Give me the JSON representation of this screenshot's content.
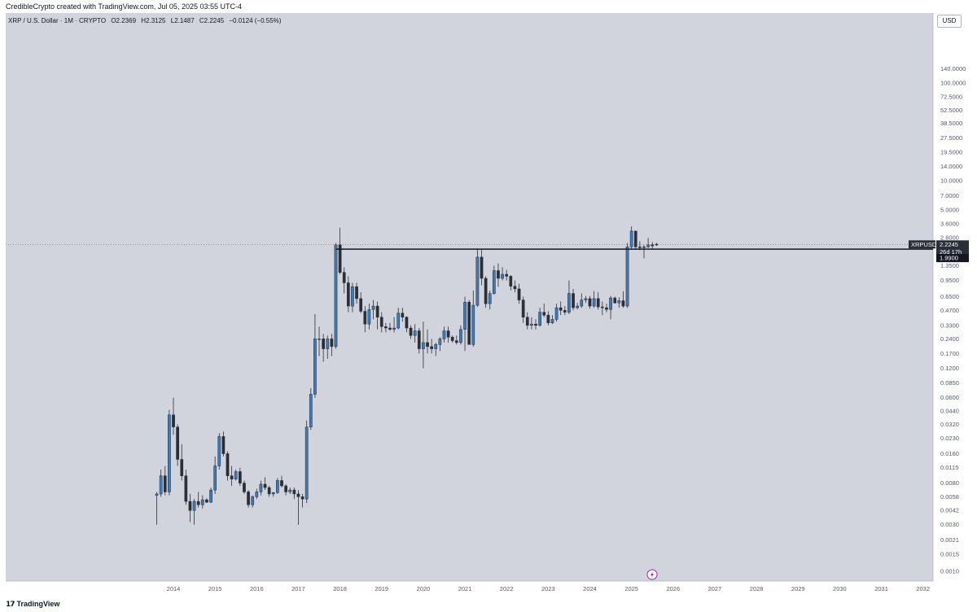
{
  "header": {
    "credit": "CredibleCrypto created with TradingView.com, Jul 05, 2025 03:55 UTC-4"
  },
  "legend": {
    "symbol": "XRP / U.S. Dollar",
    "interval": "1M",
    "exchange": "CRYPTO",
    "open_label": "O",
    "open": "2.2369",
    "high_label": "H",
    "high": "2.3125",
    "low_label": "L",
    "low": "2.1487",
    "close_label": "C",
    "close": "2.2245",
    "change": "−0.0124 (−0.55%)"
  },
  "currency_button": "USD",
  "branding": {
    "name": "TradingView",
    "mark": "𝟭𝟳"
  },
  "price_tag": {
    "symbol": "XRPUSD",
    "price": "2.2245",
    "countdown": "26d 17h"
  },
  "level_tag": {
    "price": "1.9900"
  },
  "colors": {
    "background": "#d1d4dc",
    "bull": "#3d7ab8",
    "bear": "#2a2e39",
    "level_line": "#131722",
    "tag_dark": "#131722"
  },
  "chart_data": {
    "type": "candlestick",
    "y_scale": "log",
    "ylim": [
      0.0008,
      160
    ],
    "y_ticks": [
      "140.0000",
      "100.0000",
      "72.5000",
      "52.5000",
      "38.5000",
      "27.5000",
      "19.5000",
      "14.0000",
      "10.0000",
      "7.0000",
      "5.0000",
      "3.6000",
      "2.6000",
      "1.3500",
      "0.9500",
      "0.6500",
      "0.4700",
      "0.3300",
      "0.2400",
      "0.1700",
      "0.1200",
      "0.0850",
      "0.0600",
      "0.0440",
      "0.0320",
      "0.0230",
      "0.0160",
      "0.0115",
      "0.0080",
      "0.0058",
      "0.0042",
      "0.0030",
      "0.0021",
      "0.0015",
      "0.0010"
    ],
    "x_ticks": [
      "2014",
      "2015",
      "2016",
      "2017",
      "2018",
      "2019",
      "2020",
      "2021",
      "2022",
      "2023",
      "2024",
      "2025",
      "2026",
      "2027",
      "2028",
      "2029",
      "2030",
      "2031",
      "2032"
    ],
    "horizontal_level": 1.99,
    "last_price": 2.2245,
    "series": [
      [
        2013.6,
        0.006,
        0.0065,
        0.003,
        0.0062
      ],
      [
        2013.7,
        0.0062,
        0.011,
        0.0058,
        0.0095
      ],
      [
        2013.8,
        0.0095,
        0.012,
        0.006,
        0.0065
      ],
      [
        2013.9,
        0.0065,
        0.045,
        0.006,
        0.04
      ],
      [
        2014.0,
        0.04,
        0.06,
        0.025,
        0.03
      ],
      [
        2014.1,
        0.03,
        0.032,
        0.012,
        0.014
      ],
      [
        2014.2,
        0.014,
        0.02,
        0.0085,
        0.0095
      ],
      [
        2014.3,
        0.0095,
        0.011,
        0.0048,
        0.0052
      ],
      [
        2014.4,
        0.0052,
        0.0062,
        0.0032,
        0.0042
      ],
      [
        2014.5,
        0.0042,
        0.0055,
        0.003,
        0.0052
      ],
      [
        2014.6,
        0.0052,
        0.0065,
        0.0045,
        0.0048
      ],
      [
        2014.7,
        0.0048,
        0.006,
        0.0044,
        0.0054
      ],
      [
        2014.8,
        0.0054,
        0.0056,
        0.005,
        0.0051
      ],
      [
        2014.9,
        0.0051,
        0.0072,
        0.005,
        0.0068
      ],
      [
        2015.0,
        0.0068,
        0.015,
        0.0062,
        0.012
      ],
      [
        2015.1,
        0.012,
        0.026,
        0.011,
        0.024
      ],
      [
        2015.2,
        0.024,
        0.027,
        0.015,
        0.016
      ],
      [
        2015.3,
        0.016,
        0.017,
        0.0085,
        0.0095
      ],
      [
        2015.4,
        0.0095,
        0.012,
        0.0075,
        0.0088
      ],
      [
        2015.5,
        0.0088,
        0.011,
        0.0085,
        0.0105
      ],
      [
        2015.6,
        0.0105,
        0.0115,
        0.0075,
        0.008
      ],
      [
        2015.7,
        0.008,
        0.0085,
        0.0062,
        0.0065
      ],
      [
        2015.8,
        0.0065,
        0.0068,
        0.0045,
        0.0048
      ],
      [
        2015.9,
        0.0048,
        0.006,
        0.0045,
        0.0058
      ],
      [
        2016.0,
        0.0058,
        0.007,
        0.0055,
        0.0065
      ],
      [
        2016.1,
        0.0065,
        0.0085,
        0.006,
        0.0078
      ],
      [
        2016.2,
        0.0078,
        0.0092,
        0.0068,
        0.0072
      ],
      [
        2016.3,
        0.0072,
        0.0075,
        0.0058,
        0.0062
      ],
      [
        2016.4,
        0.0062,
        0.0065,
        0.0058,
        0.0064
      ],
      [
        2016.5,
        0.0064,
        0.009,
        0.0062,
        0.0085
      ],
      [
        2016.6,
        0.0085,
        0.0095,
        0.0072,
        0.0075
      ],
      [
        2016.7,
        0.0075,
        0.0078,
        0.006,
        0.0065
      ],
      [
        2016.8,
        0.0065,
        0.0072,
        0.0062,
        0.0068
      ],
      [
        2016.9,
        0.0068,
        0.0072,
        0.0055,
        0.0062
      ],
      [
        2017.0,
        0.0062,
        0.0068,
        0.003,
        0.0058
      ],
      [
        2017.1,
        0.0058,
        0.0062,
        0.0045,
        0.0055
      ],
      [
        2017.2,
        0.0055,
        0.035,
        0.005,
        0.03
      ],
      [
        2017.3,
        0.03,
        0.075,
        0.028,
        0.065
      ],
      [
        2017.4,
        0.065,
        0.43,
        0.06,
        0.24
      ],
      [
        2017.5,
        0.24,
        0.32,
        0.16,
        0.24
      ],
      [
        2017.6,
        0.24,
        0.27,
        0.14,
        0.19
      ],
      [
        2017.7,
        0.19,
        0.26,
        0.15,
        0.24
      ],
      [
        2017.8,
        0.24,
        0.27,
        0.16,
        0.2
      ],
      [
        2017.9,
        0.2,
        2.3,
        0.19,
        2.2
      ],
      [
        2018.0,
        2.2,
        3.3,
        1.1,
        1.15
      ],
      [
        2018.1,
        1.15,
        1.3,
        0.7,
        0.9
      ],
      [
        2018.2,
        0.9,
        1.05,
        0.45,
        0.52
      ],
      [
        2018.3,
        0.52,
        0.9,
        0.45,
        0.82
      ],
      [
        2018.4,
        0.82,
        0.9,
        0.55,
        0.62
      ],
      [
        2018.5,
        0.62,
        0.72,
        0.44,
        0.46
      ],
      [
        2018.6,
        0.46,
        0.52,
        0.28,
        0.34
      ],
      [
        2018.7,
        0.34,
        0.55,
        0.3,
        0.48
      ],
      [
        2018.8,
        0.48,
        0.6,
        0.38,
        0.52
      ],
      [
        2018.9,
        0.52,
        0.58,
        0.3,
        0.4
      ],
      [
        2019.0,
        0.4,
        0.45,
        0.28,
        0.32
      ],
      [
        2019.1,
        0.32,
        0.35,
        0.28,
        0.31
      ],
      [
        2019.2,
        0.31,
        0.35,
        0.29,
        0.3
      ],
      [
        2019.3,
        0.3,
        0.4,
        0.28,
        0.31
      ],
      [
        2019.4,
        0.31,
        0.5,
        0.3,
        0.44
      ],
      [
        2019.5,
        0.44,
        0.5,
        0.36,
        0.4
      ],
      [
        2019.6,
        0.4,
        0.41,
        0.28,
        0.31
      ],
      [
        2019.7,
        0.31,
        0.33,
        0.24,
        0.26
      ],
      [
        2019.8,
        0.26,
        0.34,
        0.22,
        0.29
      ],
      [
        2019.9,
        0.29,
        0.31,
        0.17,
        0.19
      ],
      [
        2020.0,
        0.19,
        0.36,
        0.12,
        0.22
      ],
      [
        2020.1,
        0.22,
        0.3,
        0.17,
        0.2
      ],
      [
        2020.2,
        0.2,
        0.24,
        0.17,
        0.19
      ],
      [
        2020.3,
        0.19,
        0.22,
        0.16,
        0.21
      ],
      [
        2020.4,
        0.21,
        0.25,
        0.18,
        0.24
      ],
      [
        2020.5,
        0.24,
        0.32,
        0.22,
        0.29
      ],
      [
        2020.6,
        0.29,
        0.32,
        0.22,
        0.25
      ],
      [
        2020.7,
        0.25,
        0.26,
        0.22,
        0.23
      ],
      [
        2020.8,
        0.23,
        0.26,
        0.21,
        0.22
      ],
      [
        2020.9,
        0.22,
        0.33,
        0.21,
        0.3
      ],
      [
        2021.0,
        0.3,
        0.65,
        0.18,
        0.57
      ],
      [
        2021.1,
        0.57,
        0.6,
        0.21,
        0.21
      ],
      [
        2021.2,
        0.21,
        0.75,
        0.2,
        0.53
      ],
      [
        2021.3,
        0.53,
        1.98,
        0.51,
        1.65
      ],
      [
        2021.4,
        1.65,
        1.97,
        0.85,
        1.0
      ],
      [
        2021.5,
        1.0,
        1.05,
        0.5,
        0.55
      ],
      [
        2021.6,
        0.55,
        0.75,
        0.48,
        0.7
      ],
      [
        2021.7,
        0.7,
        1.35,
        0.68,
        1.2
      ],
      [
        2021.8,
        1.2,
        1.42,
        0.82,
        1.0
      ],
      [
        2021.9,
        1.0,
        1.3,
        0.95,
        1.1
      ],
      [
        2022.0,
        1.1,
        1.22,
        0.95,
        1.05
      ],
      [
        2022.1,
        1.05,
        1.08,
        0.75,
        0.83
      ],
      [
        2022.2,
        0.83,
        0.95,
        0.72,
        0.78
      ],
      [
        2022.3,
        0.78,
        0.88,
        0.55,
        0.6
      ],
      [
        2022.4,
        0.6,
        0.65,
        0.35,
        0.4
      ],
      [
        2022.5,
        0.4,
        0.45,
        0.3,
        0.33
      ],
      [
        2022.6,
        0.33,
        0.4,
        0.3,
        0.34
      ],
      [
        2022.7,
        0.34,
        0.38,
        0.3,
        0.33
      ],
      [
        2022.8,
        0.33,
        0.5,
        0.32,
        0.45
      ],
      [
        2022.9,
        0.45,
        0.55,
        0.4,
        0.42
      ],
      [
        2023.0,
        0.42,
        0.46,
        0.33,
        0.35
      ],
      [
        2023.1,
        0.35,
        0.42,
        0.34,
        0.38
      ],
      [
        2023.2,
        0.38,
        0.55,
        0.36,
        0.5
      ],
      [
        2023.3,
        0.5,
        0.58,
        0.42,
        0.47
      ],
      [
        2023.4,
        0.47,
        0.52,
        0.42,
        0.45
      ],
      [
        2023.5,
        0.45,
        0.95,
        0.43,
        0.7
      ],
      [
        2023.6,
        0.7,
        0.78,
        0.47,
        0.5
      ],
      [
        2023.7,
        0.5,
        0.56,
        0.48,
        0.52
      ],
      [
        2023.8,
        0.52,
        0.7,
        0.5,
        0.6
      ],
      [
        2023.9,
        0.6,
        0.66,
        0.56,
        0.62
      ],
      [
        2024.0,
        0.62,
        0.66,
        0.49,
        0.52
      ],
      [
        2024.1,
        0.52,
        0.74,
        0.5,
        0.62
      ],
      [
        2024.2,
        0.62,
        0.72,
        0.48,
        0.51
      ],
      [
        2024.3,
        0.51,
        0.58,
        0.42,
        0.5
      ],
      [
        2024.4,
        0.5,
        0.55,
        0.45,
        0.48
      ],
      [
        2024.5,
        0.48,
        0.66,
        0.38,
        0.63
      ],
      [
        2024.6,
        0.63,
        0.65,
        0.55,
        0.56
      ],
      [
        2024.7,
        0.56,
        0.64,
        0.5,
        0.59
      ],
      [
        2024.8,
        0.59,
        0.74,
        0.5,
        0.52
      ],
      [
        2024.9,
        0.52,
        2.3,
        0.5,
        2.1
      ],
      [
        2025.0,
        2.1,
        3.4,
        2.0,
        3.05
      ],
      [
        2025.1,
        3.05,
        3.05,
        2.0,
        2.1
      ],
      [
        2025.2,
        2.1,
        2.4,
        1.95,
        2.07
      ],
      [
        2025.3,
        2.07,
        2.2,
        1.6,
        2.1
      ],
      [
        2025.4,
        2.1,
        2.6,
        2.05,
        2.2
      ],
      [
        2025.5,
        2.2,
        2.35,
        2.0,
        2.15
      ],
      [
        2025.6,
        2.2369,
        2.3125,
        2.1487,
        2.2245
      ]
    ]
  }
}
